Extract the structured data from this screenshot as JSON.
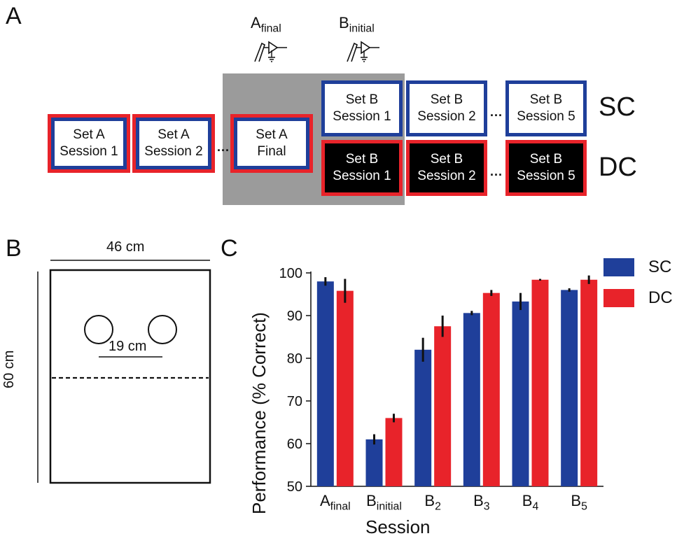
{
  "panels": {
    "a_label": "A",
    "b_label": "B",
    "c_label": "C"
  },
  "panel_a": {
    "recording_labels": [
      {
        "main": "A",
        "sub": "final"
      },
      {
        "main": "B",
        "sub": "initial"
      }
    ],
    "boxes": {
      "set_a_1": [
        "Set A",
        "Session 1"
      ],
      "set_a_2": [
        "Set A",
        "Session 2"
      ],
      "set_a_final": [
        "Set A",
        "Final"
      ],
      "sc_b1": [
        "Set B",
        "Session 1"
      ],
      "sc_b2": [
        "Set B",
        "Session 2"
      ],
      "sc_b5": [
        "Set B",
        "Session 5"
      ],
      "dc_b1": [
        "Set B",
        "Session 1"
      ],
      "dc_b2": [
        "Set B",
        "Session 2"
      ],
      "dc_b5": [
        "Set B",
        "Session 5"
      ]
    },
    "ellipsis": "...",
    "condition_labels": [
      "SC",
      "DC"
    ],
    "colors": {
      "red": "#e8232a",
      "blue": "#1f3f9a",
      "gray": "#9b9b9b"
    }
  },
  "panel_b": {
    "width_label": "46 cm",
    "height_label": "60 cm",
    "spacing_label": "19 cm"
  },
  "chart_data": {
    "type": "bar",
    "ylabel": "Performance (% Correct)",
    "xlabel": "Session",
    "ylim": [
      50,
      100
    ],
    "yticks": [
      50,
      60,
      70,
      80,
      90,
      100
    ],
    "categories": [
      {
        "main": "A",
        "sub": "final"
      },
      {
        "main": "B",
        "sub": "initial"
      },
      {
        "main": "B",
        "sub": "2"
      },
      {
        "main": "B",
        "sub": "3"
      },
      {
        "main": "B",
        "sub": "4"
      },
      {
        "main": "B",
        "sub": "5"
      }
    ],
    "series": [
      {
        "name": "SC",
        "color": "#1f3f9a",
        "values": [
          98.0,
          61.0,
          82.0,
          90.6,
          93.3,
          96.0
        ],
        "errors": [
          1.0,
          1.2,
          2.8,
          0.5,
          2.0,
          0.4
        ]
      },
      {
        "name": "DC",
        "color": "#e8232a",
        "values": [
          95.8,
          66.0,
          87.5,
          95.3,
          98.4,
          98.4
        ],
        "errors": [
          2.8,
          1.0,
          2.5,
          0.7,
          0.2,
          1.0
        ]
      }
    ],
    "legend": "top-right"
  }
}
